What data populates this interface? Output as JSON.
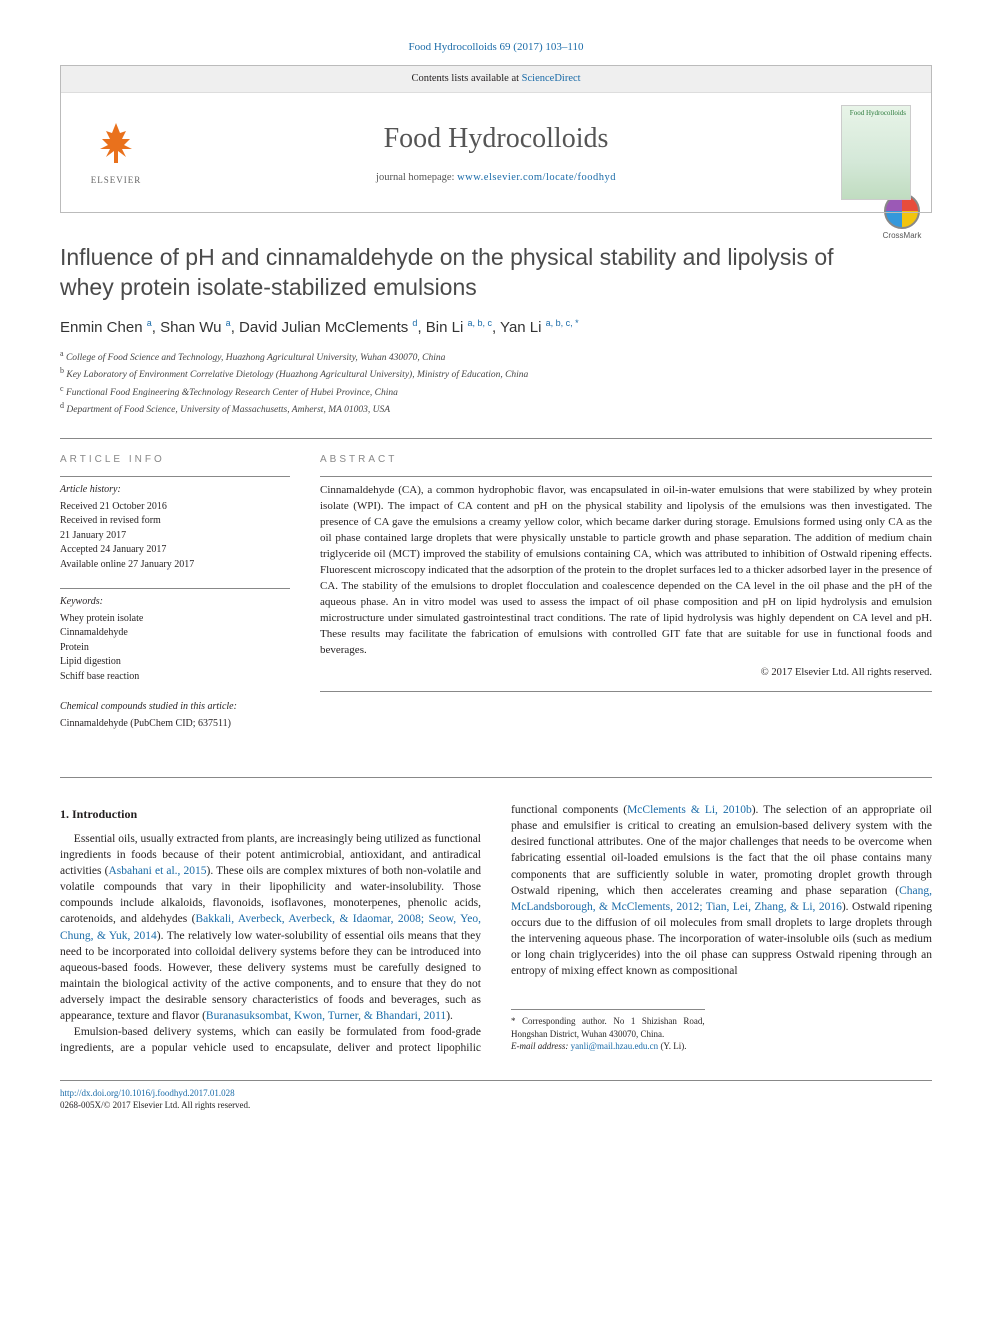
{
  "citation": "Food Hydrocolloids 69 (2017) 103–110",
  "header": {
    "contents_prefix": "Contents lists available at ",
    "contents_link": "ScienceDirect",
    "journal": "Food Hydrocolloids",
    "homepage_prefix": "journal homepage: ",
    "homepage_url": "www.elsevier.com/locate/foodhyd",
    "publisher": "ELSEVIER",
    "cover_text": "Food\nHydrocolloids"
  },
  "crossmark": "CrossMark",
  "title": "Influence of pH and cinnamaldehyde on the physical stability and lipolysis of whey protein isolate-stabilized emulsions",
  "authors_html": "Enmin Chen <sup>a</sup>, Shan Wu <sup>a</sup>, David Julian McClements <sup>d</sup>, Bin Li <sup>a, b, c</sup>, Yan Li <sup>a, b, c, *</sup>",
  "affiliations": [
    {
      "sup": "a",
      "text": "College of Food Science and Technology, Huazhong Agricultural University, Wuhan 430070, China"
    },
    {
      "sup": "b",
      "text": "Key Laboratory of Environment Correlative Dietology (Huazhong Agricultural University), Ministry of Education, China"
    },
    {
      "sup": "c",
      "text": "Functional Food Engineering &Technology Research Center of Hubei Province, China"
    },
    {
      "sup": "d",
      "text": "Department of Food Science, University of Massachusetts, Amherst, MA 01003, USA"
    }
  ],
  "info": {
    "label": "ARTICLE INFO",
    "history_title": "Article history:",
    "history": [
      "Received 21 October 2016",
      "Received in revised form",
      "21 January 2017",
      "Accepted 24 January 2017",
      "Available online 27 January 2017"
    ],
    "keywords_title": "Keywords:",
    "keywords": [
      "Whey protein isolate",
      "Cinnamaldehyde",
      "Protein",
      "Lipid digestion",
      "Schiff base reaction"
    ],
    "compounds_title": "Chemical compounds studied in this article:",
    "compounds": "Cinnamaldehyde (PubChem CID; 637511)"
  },
  "abstract": {
    "label": "ABSTRACT",
    "text": "Cinnamaldehyde (CA), a common hydrophobic flavor, was encapsulated in oil-in-water emulsions that were stabilized by whey protein isolate (WPI). The impact of CA content and pH on the physical stability and lipolysis of the emulsions was then investigated. The presence of CA gave the emulsions a creamy yellow color, which became darker during storage. Emulsions formed using only CA as the oil phase contained large droplets that were physically unstable to particle growth and phase separation. The addition of medium chain triglyceride oil (MCT) improved the stability of emulsions containing CA, which was attributed to inhibition of Ostwald ripening effects. Fluorescent microscopy indicated that the adsorption of the protein to the droplet surfaces led to a thicker adsorbed layer in the presence of CA. The stability of the emulsions to droplet flocculation and coalescence depended on the CA level in the oil phase and the pH of the aqueous phase. An in vitro model was used to assess the impact of oil phase composition and pH on lipid hydrolysis and emulsion microstructure under simulated gastrointestinal tract conditions. The rate of lipid hydrolysis was highly dependent on CA level and pH. These results may facilitate the fabrication of emulsions with controlled GIT fate that are suitable for use in functional foods and beverages.",
    "copyright": "© 2017 Elsevier Ltd. All rights reserved."
  },
  "body": {
    "heading": "1. Introduction",
    "p1a": "Essential oils, usually extracted from plants, are increasingly being utilized as functional ingredients in foods because of their potent antimicrobial, antioxidant, and antiradical activities (",
    "p1_ref1": "Asbahani et al., 2015",
    "p1b": "). These oils are complex mixtures of both non-volatile and volatile compounds that vary in their lipophilicity and water-insolubility. Those compounds include alkaloids, flavonoids, isoflavones, monoterpenes, phenolic acids, carotenoids, and aldehydes (",
    "p1_ref2": "Bakkali, Averbeck, Averbeck, & Idaomar, 2008; Seow, Yeo, Chung, & Yuk, 2014",
    "p1c": "). The relatively low water-solubility of essential oils means that they need to be incorporated into colloidal delivery systems before they can be introduced into aqueous-based foods. However, these delivery systems must be carefully designed to maintain the biological activity of the active components, and to ",
    "p2a": "ensure that they do not adversely impact the desirable sensory characteristics of foods and beverages, such as appearance, texture and flavor (",
    "p2_ref1": "Buranasuksombat, Kwon, Turner, & Bhandari, 2011",
    "p2b": ").",
    "p3a": "Emulsion-based delivery systems, which can easily be formulated from food-grade ingredients, are a popular vehicle used to encapsulate, deliver and protect lipophilic functional components (",
    "p3_ref1": "McClements & Li, 2010b",
    "p3b": "). The selection of an appropriate oil phase and emulsifier is critical to creating an emulsion-based delivery system with the desired functional attributes. One of the major challenges that needs to be overcome when fabricating essential oil-loaded emulsions is the fact that the oil phase contains many components that are sufficiently soluble in water, promoting droplet growth through Ostwald ripening, which then accelerates creaming and phase separation (",
    "p3_ref2": "Chang, McLandsborough, & McClements, 2012; Tian, Lei, Zhang, & Li, 2016",
    "p3c": "). Ostwald ripening occurs due to the diffusion of oil molecules from small droplets to large droplets through the intervening aqueous phase. The incorporation of water-insoluble oils (such as medium or long chain triglycerides) into the oil phase can suppress Ostwald ripening through an entropy of mixing effect known as compositional"
  },
  "corr": {
    "star": "* Corresponding author. No 1 Shizishan Road, Hongshan District, Wuhan 430070, China.",
    "email_label": "E-mail address: ",
    "email": "yanli@mail.hzau.edu.cn",
    "email_suffix": " (Y. Li)."
  },
  "footer": {
    "doi": "http://dx.doi.org/10.1016/j.foodhyd.2017.01.028",
    "issn": "0268-005X/© 2017 Elsevier Ltd. All rights reserved."
  },
  "colors": {
    "link": "#1a6ba8",
    "text": "#231f20",
    "orange": "#e9711c"
  }
}
